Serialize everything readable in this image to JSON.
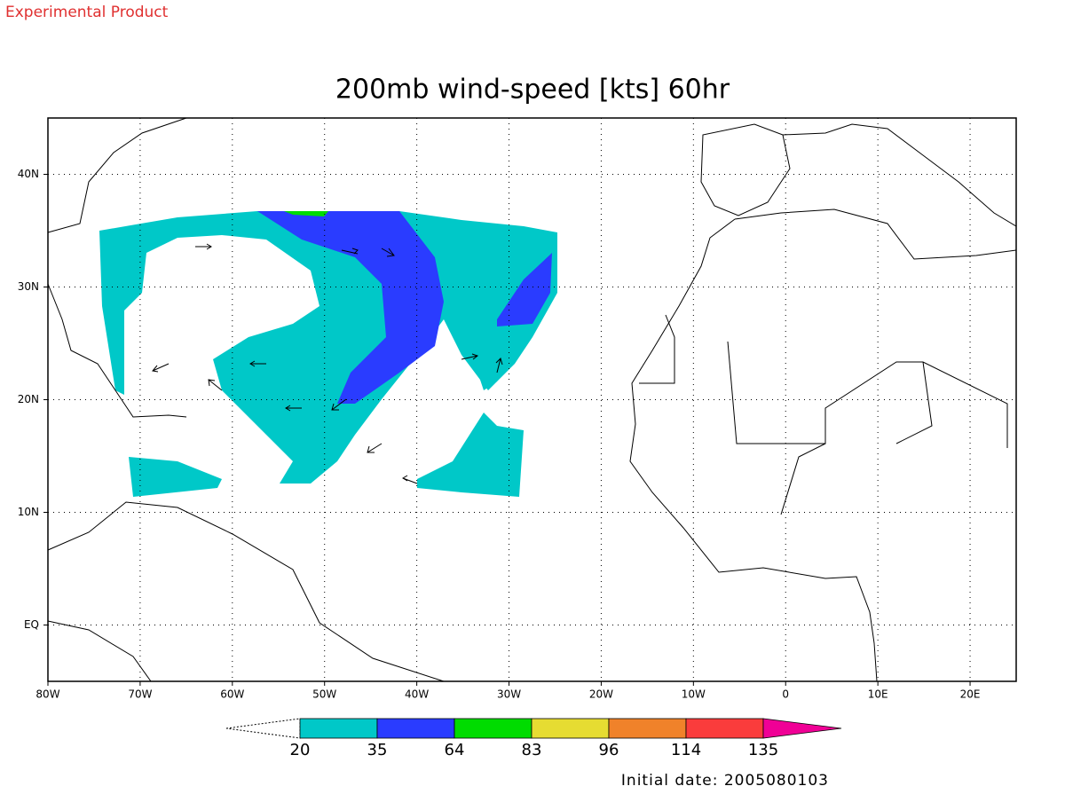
{
  "header": {
    "note": "Experimental Product"
  },
  "title": "200mb wind-speed [kts] 60hr",
  "map": {
    "lon_range": [
      -80,
      25
    ],
    "lat_range": [
      -5,
      45
    ],
    "lon_ticks": [
      {
        "value": -80,
        "label": "80W"
      },
      {
        "value": -70,
        "label": "70W"
      },
      {
        "value": -60,
        "label": "60W"
      },
      {
        "value": -50,
        "label": "50W"
      },
      {
        "value": -40,
        "label": "40W"
      },
      {
        "value": -30,
        "label": "30W"
      },
      {
        "value": -20,
        "label": "20W"
      },
      {
        "value": -10,
        "label": "10W"
      },
      0,
      {
        "value": 10,
        "label": "10E"
      },
      {
        "value": 20,
        "label": "20E"
      }
    ],
    "lat_ticks": [
      {
        "value": 0,
        "label": "EQ"
      },
      {
        "value": 10,
        "label": "10N"
      },
      {
        "value": 20,
        "label": "20N"
      },
      {
        "value": 30,
        "label": "30N"
      },
      {
        "value": 40,
        "label": "40N"
      }
    ],
    "grid": true
  },
  "colorbar": {
    "levels": [
      20,
      35,
      64,
      83,
      96,
      114,
      135
    ],
    "colors": [
      "#00c8c8",
      "#2a3cff",
      "#00dc00",
      "#e6dc32",
      "#f0822a",
      "#fa3c3c",
      "#f00096"
    ]
  },
  "footer": {
    "initial_date": "Initial date: 2005080103"
  }
}
